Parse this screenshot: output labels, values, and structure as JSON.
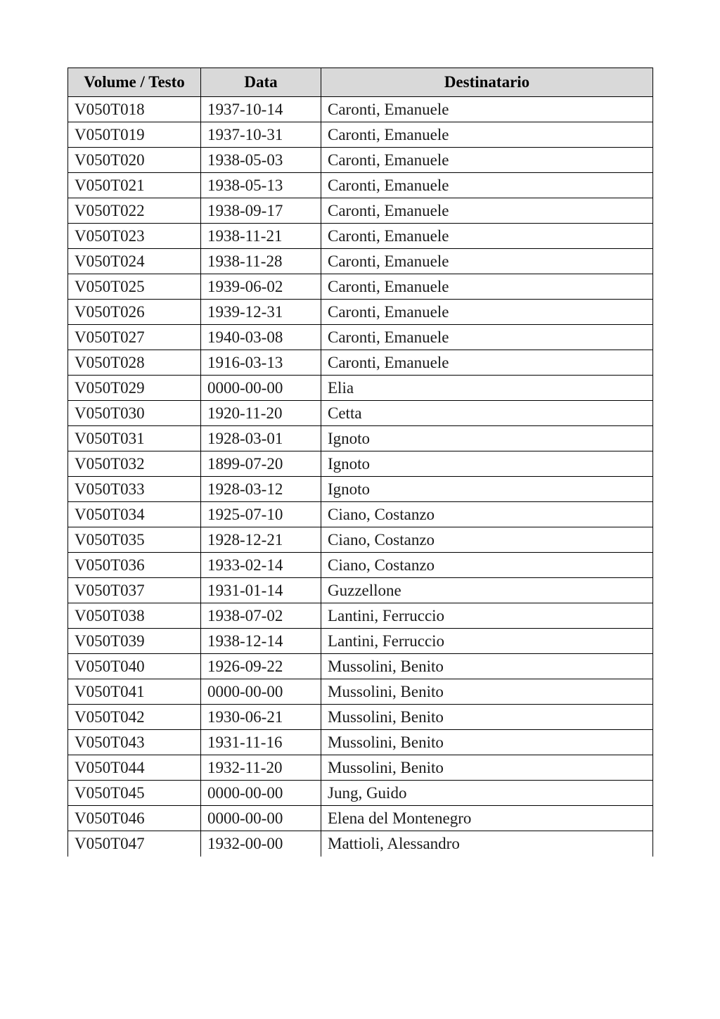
{
  "page": {
    "background": "#ffffff"
  },
  "table": {
    "header_bg": "#d9d9d9",
    "border_color": "#000000",
    "text_color": "#1a1a1a",
    "columns": [
      "Volume / Testo",
      "Data",
      "Destinatario"
    ],
    "rows": [
      [
        "V050T018",
        "1937-10-14",
        "Caronti, Emanuele"
      ],
      [
        "V050T019",
        "1937-10-31",
        "Caronti, Emanuele"
      ],
      [
        "V050T020",
        "1938-05-03",
        "Caronti, Emanuele"
      ],
      [
        "V050T021",
        "1938-05-13",
        "Caronti, Emanuele"
      ],
      [
        "V050T022",
        "1938-09-17",
        "Caronti, Emanuele"
      ],
      [
        "V050T023",
        "1938-11-21",
        "Caronti, Emanuele"
      ],
      [
        "V050T024",
        "1938-11-28",
        "Caronti, Emanuele"
      ],
      [
        "V050T025",
        "1939-06-02",
        "Caronti, Emanuele"
      ],
      [
        "V050T026",
        "1939-12-31",
        "Caronti, Emanuele"
      ],
      [
        "V050T027",
        "1940-03-08",
        "Caronti, Emanuele"
      ],
      [
        "V050T028",
        "1916-03-13",
        "Caronti, Emanuele"
      ],
      [
        "V050T029",
        "0000-00-00",
        "Elia"
      ],
      [
        "V050T030",
        "1920-11-20",
        "Cetta"
      ],
      [
        "V050T031",
        "1928-03-01",
        "Ignoto"
      ],
      [
        "V050T032",
        "1899-07-20",
        "Ignoto"
      ],
      [
        "V050T033",
        "1928-03-12",
        "Ignoto"
      ],
      [
        "V050T034",
        "1925-07-10",
        "Ciano, Costanzo"
      ],
      [
        "V050T035",
        "1928-12-21",
        "Ciano, Costanzo"
      ],
      [
        "V050T036",
        "1933-02-14",
        "Ciano, Costanzo"
      ],
      [
        "V050T037",
        "1931-01-14",
        "Guzzellone"
      ],
      [
        "V050T038",
        "1938-07-02",
        "Lantini, Ferruccio"
      ],
      [
        "V050T039",
        "1938-12-14",
        "Lantini, Ferruccio"
      ],
      [
        "V050T040",
        "1926-09-22",
        "Mussolini, Benito"
      ],
      [
        "V050T041",
        "0000-00-00",
        "Mussolini, Benito"
      ],
      [
        "V050T042",
        "1930-06-21",
        "Mussolini, Benito"
      ],
      [
        "V050T043",
        "1931-11-16",
        "Mussolini, Benito"
      ],
      [
        "V050T044",
        "1932-11-20",
        "Mussolini, Benito"
      ],
      [
        "V050T045",
        "0000-00-00",
        "Jung, Guido"
      ],
      [
        "V050T046",
        "0000-00-00",
        "Elena del Montenegro"
      ],
      [
        "V050T047",
        "1932-00-00",
        "Mattioli, Alessandro"
      ]
    ]
  }
}
